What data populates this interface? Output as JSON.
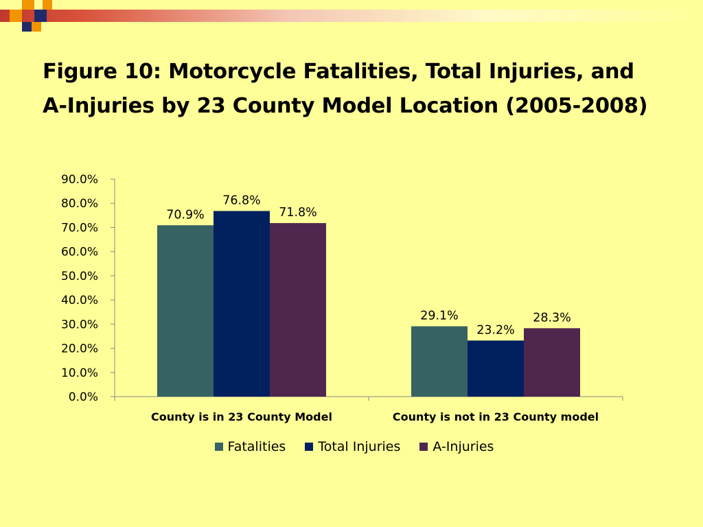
{
  "slide": {
    "title_line1": "Figure 10: Motorcycle Fatalities, Total Injuries, and",
    "title_line2": "A-Injuries by 23 County Model Location (2005-2008)"
  },
  "colors": {
    "background": "#FFFF99",
    "accent_orange": "#F29400",
    "accent_navy": "#1F2A6B",
    "accent_red": "#C0392B"
  },
  "chart_data": {
    "type": "bar",
    "categories": [
      "County is in 23 County Model",
      "County is not in 23 County model"
    ],
    "series": [
      {
        "name": "Fatalities",
        "values": [
          70.9,
          29.1
        ],
        "labels": [
          "70.9%",
          "29.1%"
        ],
        "color": "#366263"
      },
      {
        "name": "Total Injuries",
        "values": [
          76.8,
          23.2
        ],
        "labels": [
          "76.8%",
          "23.2%"
        ],
        "color": "#00215E"
      },
      {
        "name": "A-Injuries",
        "values": [
          71.8,
          28.3
        ],
        "labels": [
          "71.8%",
          "28.3%"
        ],
        "color": "#4E264E"
      }
    ],
    "yticks": [
      "0.0%",
      "10.0%",
      "20.0%",
      "30.0%",
      "40.0%",
      "50.0%",
      "60.0%",
      "70.0%",
      "80.0%",
      "90.0%"
    ],
    "ylim": [
      0,
      90
    ],
    "grid": false,
    "legend_position": "bottom"
  }
}
